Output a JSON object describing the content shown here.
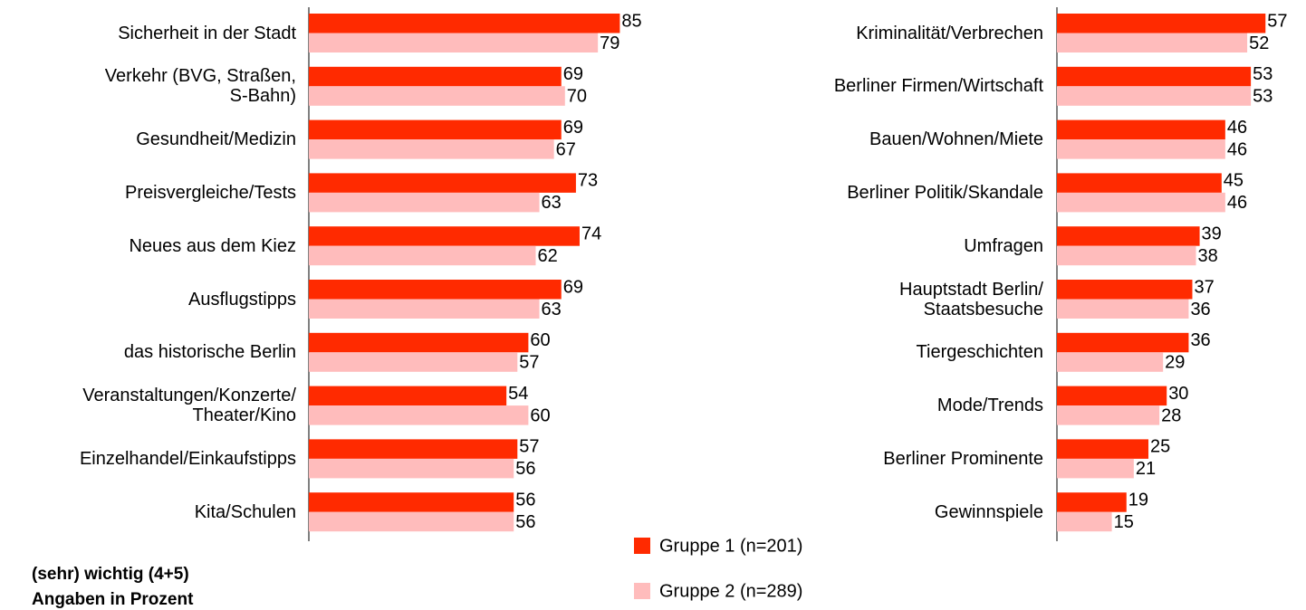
{
  "chart_data": [
    {
      "type": "bar",
      "orientation": "horizontal",
      "categories": [
        "Sicherheit in der Stadt",
        "Verkehr (BVG, Straßen,\nS-Bahn)",
        "Gesundheit/Medizin",
        "Preisvergleiche/Tests",
        "Neues aus dem Kiez",
        "Ausflugstipps",
        "das historische Berlin",
        "Veranstaltungen/Konzerte/\nTheater/Kino",
        "Einzelhandel/Einkaufstipps",
        "Kita/Schulen"
      ],
      "series": [
        {
          "name": "Gruppe 1 (n=201)",
          "color": "#ff2a00",
          "values": [
            85,
            69,
            69,
            73,
            74,
            69,
            60,
            54,
            57,
            56
          ]
        },
        {
          "name": "Gruppe 2 (n=289)",
          "color": "#ffbcbc",
          "values": [
            79,
            70,
            67,
            63,
            62,
            63,
            57,
            60,
            56,
            56
          ]
        }
      ],
      "xlim": [
        0,
        100
      ]
    },
    {
      "type": "bar",
      "orientation": "horizontal",
      "categories": [
        "Kriminalität/Verbrechen",
        "Berliner Firmen/Wirtschaft",
        "Bauen/Wohnen/Miete",
        "Berliner Politik/Skandale",
        "Umfragen",
        "Hauptstadt Berlin/\nStaatsbesuche",
        "Tiergeschichten",
        "Mode/Trends",
        "Berliner Prominente",
        "Gewinnspiele"
      ],
      "series": [
        {
          "color": "#ff2a00",
          "values": [
            57,
            53,
            46,
            45,
            39,
            37,
            36,
            30,
            25,
            19
          ]
        },
        {
          "color": "#ffbcbc",
          "values": [
            52,
            53,
            46,
            46,
            38,
            36,
            29,
            28,
            21,
            15
          ]
        }
      ],
      "xlim": [
        0,
        100
      ]
    }
  ],
  "notes": [
    "(sehr) wichtig (4+5)",
    "Angaben in Prozent"
  ]
}
